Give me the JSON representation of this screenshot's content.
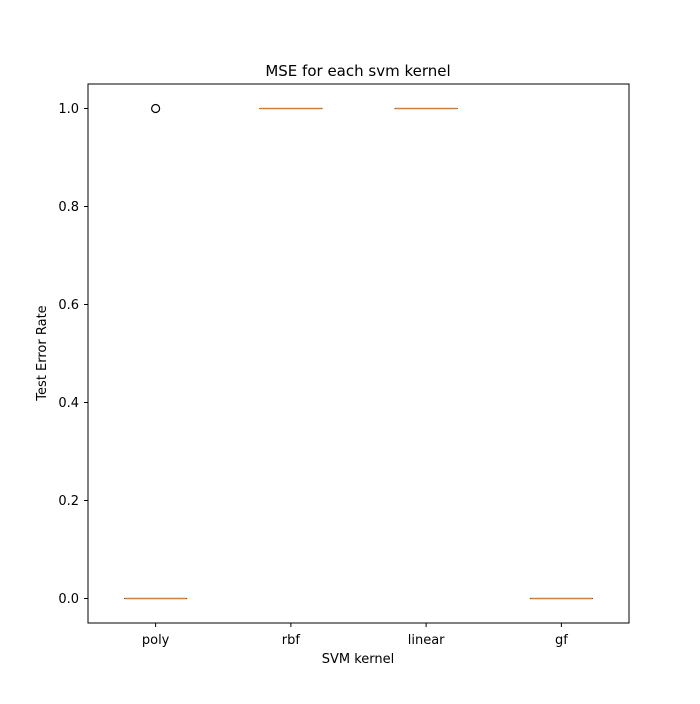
{
  "chart_data": {
    "type": "box",
    "title": "MSE for each svm kernel",
    "xlabel": "SVM kernel",
    "ylabel": "Test Error Rate",
    "categories": [
      "poly",
      "rbf",
      "linear",
      "gf"
    ],
    "boxes": [
      {
        "category": "poly",
        "whislo": 0.0,
        "q1": 0.0,
        "median": 0.0,
        "q3": 0.0,
        "whishi": 0.0,
        "fliers": [
          1.0
        ]
      },
      {
        "category": "rbf",
        "whislo": 1.0,
        "q1": 1.0,
        "median": 1.0,
        "q3": 1.0,
        "whishi": 1.0,
        "fliers": []
      },
      {
        "category": "linear",
        "whislo": 1.0,
        "q1": 1.0,
        "median": 1.0,
        "q3": 1.0,
        "whishi": 1.0,
        "fliers": []
      },
      {
        "category": "gf",
        "whislo": 0.0,
        "q1": 0.0,
        "median": 0.0,
        "q3": 0.0,
        "whishi": 0.0,
        "fliers": []
      }
    ],
    "yticks": [
      "0.0",
      "0.2",
      "0.4",
      "0.6",
      "0.8",
      "1.0"
    ],
    "ylim": [
      -0.05,
      1.05
    ],
    "grid": false,
    "colors": {
      "median": "#d1813a",
      "box": "#000000",
      "flier": "#000000"
    }
  }
}
